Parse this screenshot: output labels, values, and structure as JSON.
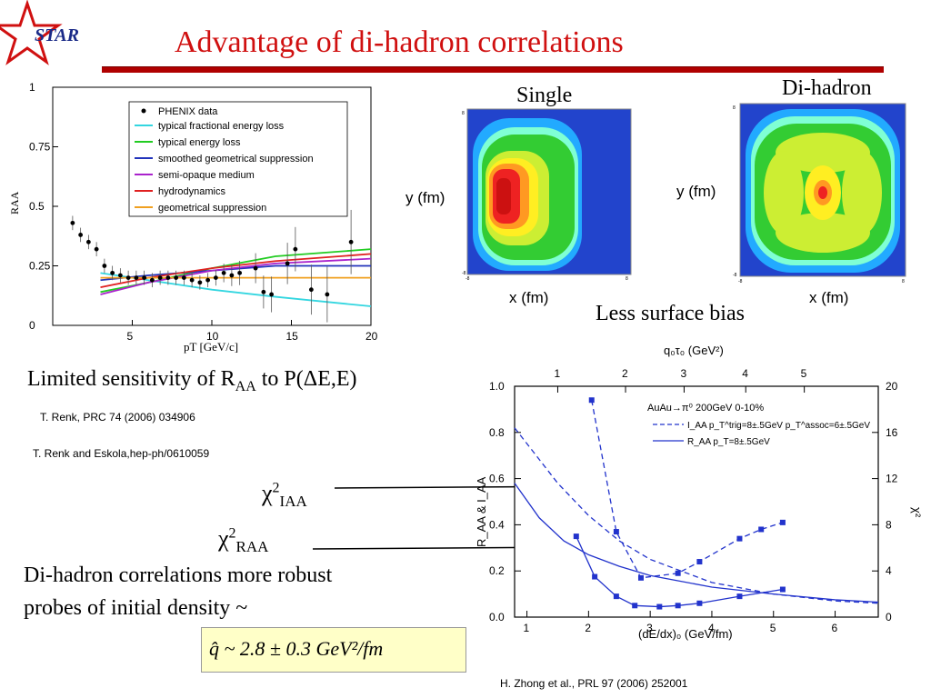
{
  "slide": {
    "title": "Advantage of di-hadron correlations",
    "logo_text": "STAR",
    "heatmap_single_label": "Single",
    "heatmap_dihadron_label": "Di-hadron",
    "heatmap_ylabel": "y (fm)",
    "heatmap_xlabel": "x (fm)",
    "surface_bias_text": "Less surface bias",
    "limited_sens_pre": "Limited sensitivity of R",
    "limited_sens_sub": "AA",
    "limited_sens_post": " to P(ΔE,E)",
    "ref1": "T. Renk,  PRC 74 (2006) 034906",
    "ref2": "T. Renk and Eskola,hep-ph/0610059",
    "chi_iaa": "χ",
    "chi_iaa_sup": "2",
    "chi_iaa_sub": "IAA",
    "chi_raa": "χ",
    "chi_raa_sup": "2",
    "chi_raa_sub": "RAA",
    "conclusion_line1": "Di-hadron correlations more robust",
    "conclusion_line2": "probes of initial density ~",
    "formula": "q̂ ~ 2.8 ± 0.3  GeV²/fm",
    "ref3": "H. Zhong et al.,  PRL 97 (2006) 252001"
  },
  "chart_data": [
    {
      "type": "line",
      "xlabel": "pT [GeV/c]",
      "ylabel": "RAA",
      "xlim": [
        0,
        20
      ],
      "ylim": [
        0,
        1
      ],
      "xticks": [
        "5",
        "10",
        "15",
        "20"
      ],
      "yticks": [
        "0",
        "0.25",
        "0.5",
        "0.75",
        "1"
      ],
      "legend_position": "top-right",
      "points": {
        "name": "PHENIX data",
        "x": [
          1.25,
          1.75,
          2.25,
          2.75,
          3.25,
          3.75,
          4.25,
          4.75,
          5.25,
          5.75,
          6.25,
          6.75,
          7.25,
          7.75,
          8.25,
          8.75,
          9.25,
          9.75,
          10.25,
          10.75,
          11.25,
          11.75,
          12.75,
          13.25,
          13.75,
          14.75,
          15.25,
          16.25,
          17.25,
          18.75
        ],
        "y": [
          0.43,
          0.38,
          0.35,
          0.32,
          0.25,
          0.22,
          0.21,
          0.2,
          0.2,
          0.2,
          0.19,
          0.2,
          0.2,
          0.2,
          0.2,
          0.19,
          0.18,
          0.19,
          0.2,
          0.22,
          0.21,
          0.22,
          0.24,
          0.14,
          0.13,
          0.26,
          0.32,
          0.15,
          0.13,
          0.35
        ]
      },
      "series": [
        {
          "name": "typical fractional energy loss",
          "color": "#33d6e0",
          "x": [
            3,
            6,
            10,
            14,
            20
          ],
          "y": [
            0.22,
            0.19,
            0.15,
            0.12,
            0.08
          ]
        },
        {
          "name": "typical energy loss",
          "color": "#22cc22",
          "x": [
            3,
            6,
            10,
            14,
            20
          ],
          "y": [
            0.14,
            0.18,
            0.24,
            0.29,
            0.32
          ]
        },
        {
          "name": "smoothed geometrical suppression",
          "color": "#2233bb",
          "x": [
            3,
            6,
            10,
            14,
            20
          ],
          "y": [
            0.19,
            0.21,
            0.23,
            0.25,
            0.25
          ]
        },
        {
          "name": "semi-opaque medium",
          "color": "#aa22cc",
          "x": [
            3,
            6,
            10,
            14,
            20
          ],
          "y": [
            0.13,
            0.18,
            0.23,
            0.26,
            0.28
          ]
        },
        {
          "name": "hydrodynamics",
          "color": "#e02020",
          "x": [
            3,
            6,
            10,
            14,
            20
          ],
          "y": [
            0.16,
            0.2,
            0.24,
            0.27,
            0.3
          ]
        },
        {
          "name": "geometrical suppression",
          "color": "#f0a020",
          "x": [
            3,
            6,
            10,
            14,
            20
          ],
          "y": [
            0.2,
            0.2,
            0.2,
            0.2,
            0.2
          ]
        }
      ]
    },
    {
      "type": "heatmap",
      "title": "Single",
      "xlabel": "x (fm)",
      "ylabel": "y (fm)",
      "xlim": [
        -8,
        8
      ],
      "ylim": [
        -8,
        8
      ],
      "xticks": [
        "-8",
        "8"
      ],
      "yticks": [
        "-8",
        "8"
      ],
      "description_levels": [
        "red",
        "orange",
        "yellow",
        "green",
        "cyan",
        "blue"
      ]
    },
    {
      "type": "heatmap",
      "title": "Di-hadron",
      "xlabel": "x (fm)",
      "ylabel": "y (fm)",
      "xlim": [
        -8,
        8
      ],
      "ylim": [
        -8,
        8
      ],
      "xticks": [
        "-8",
        "8"
      ],
      "yticks": [
        "-8",
        "8"
      ],
      "description_levels": [
        "red",
        "orange",
        "yellow",
        "green",
        "cyan",
        "blue"
      ]
    },
    {
      "type": "line",
      "title": "",
      "annotation_lines": [
        "AuAu→π⁰ 200GeV  0-10%",
        "I_AA  p_T^trig=8±.5GeV  p_T^assoc=6±.5GeV",
        "R_AA  p_T=8±.5GeV"
      ],
      "xlabel": "(dE/dx)₀ (GeV/fm)",
      "ylabel": "R_AA & I_AA",
      "top_xlabel": "q₀τ₀ (GeV²)",
      "right_ylabel": "χ²",
      "xlim": [
        0.8,
        6.7
      ],
      "ylim": [
        0,
        1
      ],
      "xticks": [
        "1",
        "2",
        "3",
        "4",
        "5",
        "6"
      ],
      "yticks": [
        "0.0",
        "0.2",
        "0.4",
        "0.6",
        "0.8",
        "1.0"
      ],
      "top_xticks": [
        "1",
        "2",
        "3",
        "4",
        "5"
      ],
      "right_yticks": [
        "0",
        "4",
        "8",
        "12",
        "16",
        "20"
      ],
      "series": [
        {
          "name": "I_AA",
          "style": "dashed",
          "x": [
            0.8,
            1.5,
            2.0,
            2.5,
            3.0,
            4.0,
            5.0,
            6.0,
            6.7
          ],
          "y": [
            0.82,
            0.58,
            0.44,
            0.33,
            0.25,
            0.15,
            0.1,
            0.07,
            0.06
          ]
        },
        {
          "name": "R_AA",
          "style": "solid",
          "x": [
            0.8,
            1.2,
            1.6,
            2.0,
            2.5,
            3.0,
            4.0,
            5.0,
            6.0,
            6.7
          ],
          "y": [
            0.58,
            0.43,
            0.33,
            0.27,
            0.22,
            0.18,
            0.13,
            0.1,
            0.075,
            0.065
          ]
        },
        {
          "name": "χ² I_AA",
          "style": "dashed-markers",
          "x": [
            2.05,
            2.45,
            2.85,
            3.45,
            3.8,
            4.45,
            4.8,
            5.15
          ],
          "y2": [
            18.8,
            7.4,
            3.4,
            3.8,
            4.8,
            6.8,
            7.6,
            8.2
          ]
        },
        {
          "name": "χ² R_AA",
          "style": "solid-markers",
          "x": [
            1.8,
            2.1,
            2.45,
            2.75,
            3.15,
            3.45,
            3.8,
            4.45,
            5.15
          ],
          "y2": [
            7.0,
            3.5,
            1.8,
            1.0,
            0.9,
            1.0,
            1.2,
            1.8,
            2.4
          ]
        }
      ]
    }
  ]
}
